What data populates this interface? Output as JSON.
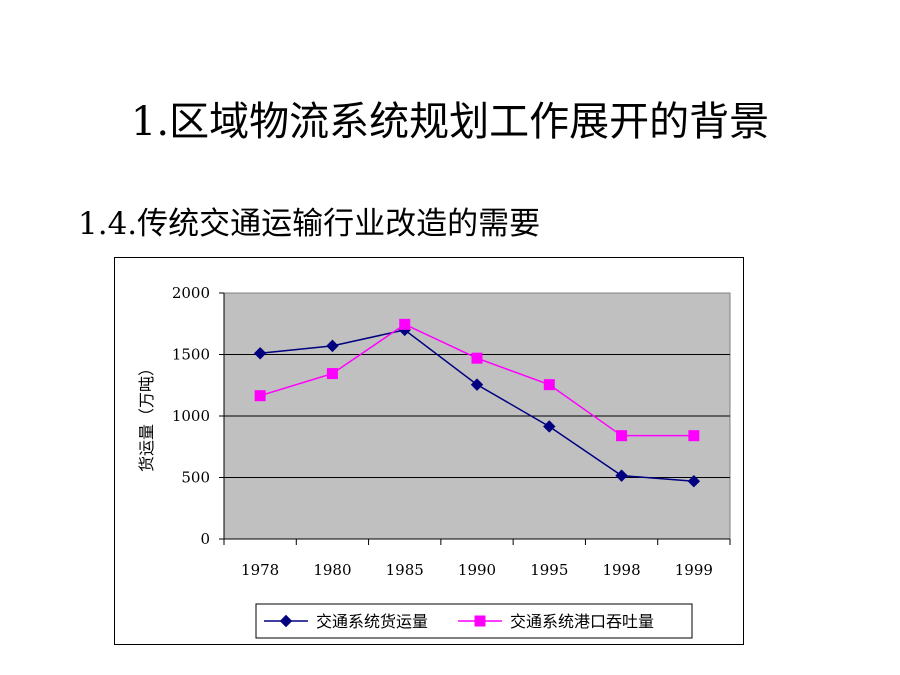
{
  "slide": {
    "title": "1.区域物流系统规划工作展开的背景",
    "subtitle": "1.4.传统交通运输行业改造的需要"
  },
  "chart_data": {
    "type": "line",
    "categories": [
      "1978",
      "1980",
      "1985",
      "1990",
      "1995",
      "1998",
      "1999"
    ],
    "ylabel": "货运量（万吨）",
    "ylim": [
      0,
      2000
    ],
    "yticks": [
      0,
      500,
      1000,
      1500,
      2000
    ],
    "grid": true,
    "legend_position": "bottom",
    "plot_background": "#c0c0c0",
    "series": [
      {
        "name": "交通系统货运量",
        "values": [
          1510,
          1570,
          1700,
          1255,
          915,
          515,
          470
        ],
        "color": "#000080",
        "marker": "diamond"
      },
      {
        "name": "交通系统港口吞吐量",
        "values": [
          1165,
          1345,
          1745,
          1470,
          1255,
          840,
          840
        ],
        "color": "#ff00ff",
        "marker": "square"
      }
    ]
  }
}
